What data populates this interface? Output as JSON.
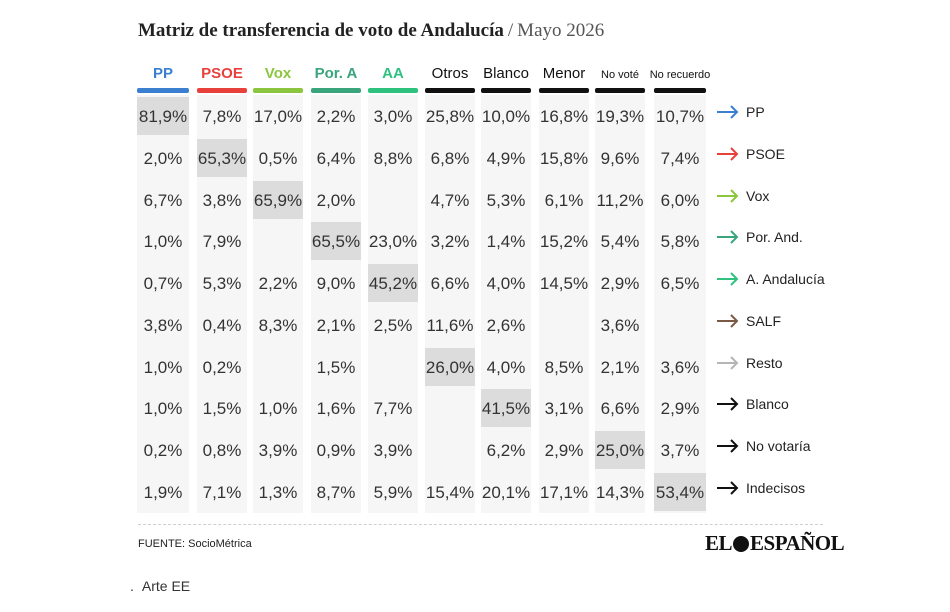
{
  "header": {
    "title": "Matriz de transferencia de voto de Andalucía",
    "separator": "/",
    "subtitle": "Mayo 2026"
  },
  "chart_data": {
    "type": "table",
    "columns": [
      {
        "label": "PP",
        "color": "#3b7fd1"
      },
      {
        "label": "PSOE",
        "color": "#e8413c"
      },
      {
        "label": "Vox",
        "color": "#8cc63f"
      },
      {
        "label": "Por. A",
        "color": "#3aa57c"
      },
      {
        "label": "AA",
        "color": "#2ec27e"
      },
      {
        "label": "Otros",
        "color": "#111111"
      },
      {
        "label": "Blanco",
        "color": "#111111"
      },
      {
        "label": "Menor",
        "color": "#111111"
      },
      {
        "label": "No voté",
        "color": "#111111",
        "small": true
      },
      {
        "label": "No recuerdo",
        "color": "#111111",
        "small": true
      }
    ],
    "rows": [
      {
        "label": "PP",
        "arrow_color": "#3b7fd1",
        "values": [
          "81,9%",
          "7,8%",
          "17,0%",
          "2,2%",
          "3,0%",
          "25,8%",
          "10,0%",
          "16,8%",
          "19,3%",
          "10,7%"
        ],
        "highlight": 0
      },
      {
        "label": "PSOE",
        "arrow_color": "#e8413c",
        "values": [
          "2,0%",
          "65,3%",
          "0,5%",
          "6,4%",
          "8,8%",
          "6,8%",
          "4,9%",
          "15,8%",
          "9,6%",
          "7,4%"
        ],
        "highlight": 1
      },
      {
        "label": "Vox",
        "arrow_color": "#8cc63f",
        "values": [
          "6,7%",
          "3,8%",
          "65,9%",
          "2,0%",
          "",
          "4,7%",
          "5,3%",
          "6,1%",
          "11,2%",
          "6,0%"
        ],
        "highlight": 2
      },
      {
        "label": "Por. And.",
        "arrow_color": "#3aa57c",
        "values": [
          "1,0%",
          "7,9%",
          "",
          "65,5%",
          "23,0%",
          "3,2%",
          "1,4%",
          "15,2%",
          "5,4%",
          "5,8%"
        ],
        "highlight": 3
      },
      {
        "label": "A. Andalucía",
        "arrow_color": "#2ec27e",
        "values": [
          "0,7%",
          "5,3%",
          "2,2%",
          "9,0%",
          "45,2%",
          "6,6%",
          "4,0%",
          "14,5%",
          "2,9%",
          "6,5%"
        ],
        "highlight": 4
      },
      {
        "label": "SALF",
        "arrow_color": "#7a5a45",
        "values": [
          "3,8%",
          "0,4%",
          "8,3%",
          "2,1%",
          "2,5%",
          "11,6%",
          "2,6%",
          "",
          "3,6%",
          ""
        ],
        "highlight": -1
      },
      {
        "label": "Resto",
        "arrow_color": "#b5b5b5",
        "values": [
          "1,0%",
          "0,2%",
          "",
          "1,5%",
          "",
          "26,0%",
          "4,0%",
          "8,5%",
          "2,1%",
          "3,6%"
        ],
        "highlight": 5
      },
      {
        "label": "Blanco",
        "arrow_color": "#111111",
        "values": [
          "1,0%",
          "1,5%",
          "1,0%",
          "1,6%",
          "7,7%",
          "",
          "41,5%",
          "3,1%",
          "6,6%",
          "2,9%"
        ],
        "highlight": 6
      },
      {
        "label": "No votaría",
        "arrow_color": "#111111",
        "values": [
          "0,2%",
          "0,8%",
          "3,9%",
          "0,9%",
          "3,9%",
          "",
          "6,2%",
          "2,9%",
          "25,0%",
          "3,7%"
        ],
        "highlight": 8
      },
      {
        "label": "Indecisos",
        "arrow_color": "#111111",
        "values": [
          "1,9%",
          "7,1%",
          "1,3%",
          "8,7%",
          "5,9%",
          "15,4%",
          "20,1%",
          "17,1%",
          "14,3%",
          "53,4%"
        ],
        "highlight": 9
      }
    ]
  },
  "footer": {
    "source": "FUENTE: SocioMétrica",
    "logo_left": "EL",
    "logo_right": "ESPAÑOL",
    "credit_dot": ".",
    "credit": "Arte EE"
  }
}
